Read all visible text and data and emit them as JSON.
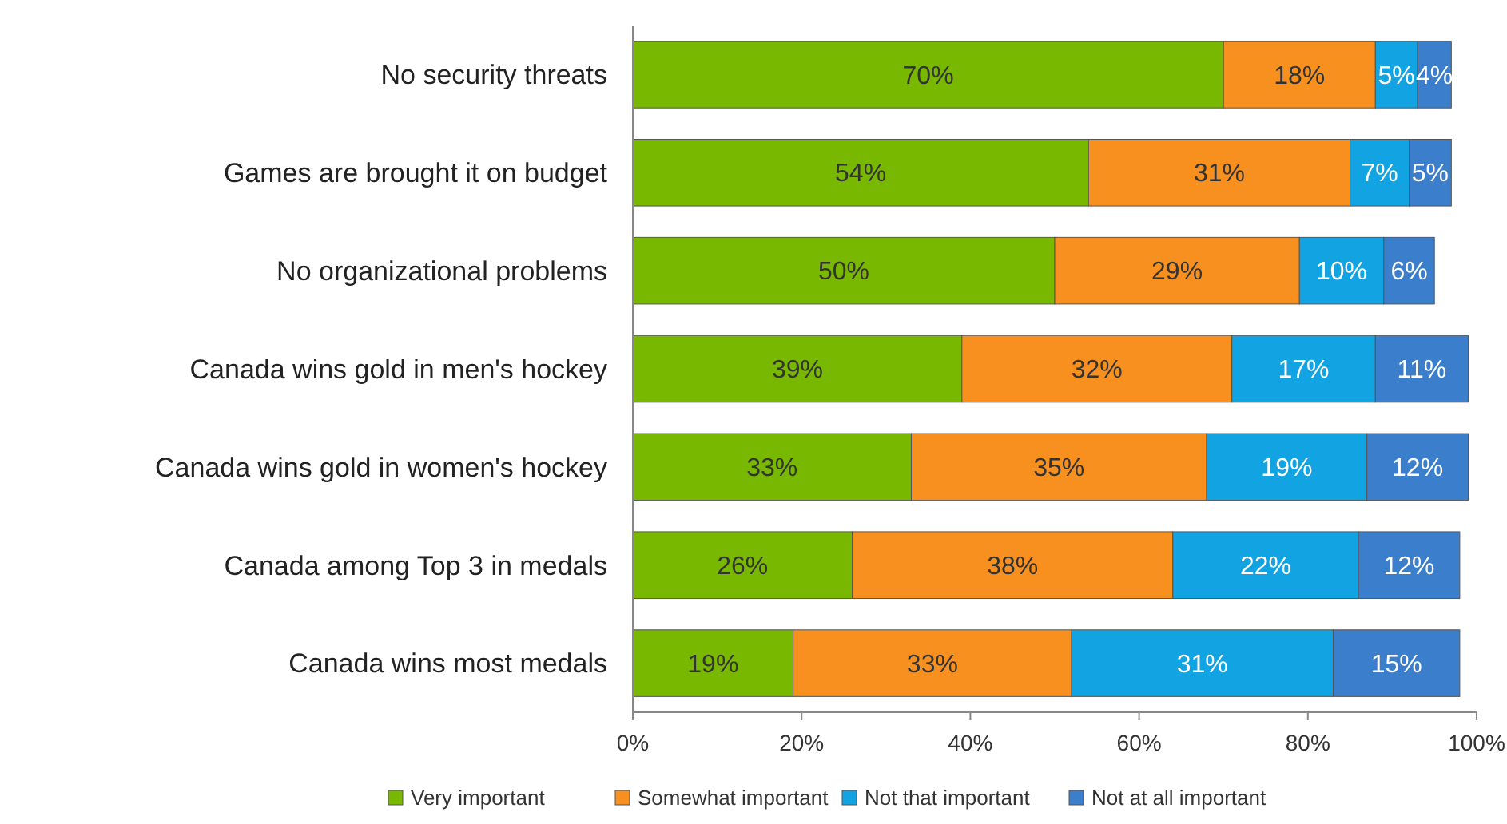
{
  "chart_data": {
    "type": "bar",
    "orientation": "horizontal",
    "stacked": true,
    "legend": "bottom",
    "grid": false,
    "categories": [
      "No security threats",
      "Games are brought it on budget",
      "No organizational problems",
      "Canada wins gold in men's hockey",
      "Canada wins gold in women's hockey",
      "Canada among Top 3 in medals",
      "Canada wins most medals"
    ],
    "series": [
      {
        "name": "Very important",
        "color": "#78b800",
        "values": [
          70,
          54,
          50,
          39,
          33,
          26,
          19
        ],
        "value_labels": [
          "70%",
          "54%",
          "50%",
          "39%",
          "33%",
          "26%",
          "19%"
        ]
      },
      {
        "name": "Somewhat important",
        "color": "#f7901e",
        "values": [
          18,
          31,
          29,
          32,
          35,
          38,
          33
        ],
        "value_labels": [
          "18%",
          "31%",
          "29%",
          "32%",
          "35%",
          "38%",
          "33%"
        ]
      },
      {
        "name": "Not that important",
        "color": "#12a3e3",
        "values": [
          5,
          7,
          10,
          17,
          19,
          22,
          31
        ],
        "value_labels": [
          "5%",
          "7%",
          "10%",
          "17%",
          "19%",
          "22%",
          "31%"
        ]
      },
      {
        "name": "Not at all important",
        "color": "#3b7fcc",
        "values": [
          4,
          5,
          6,
          11,
          12,
          12,
          15
        ],
        "value_labels": [
          "4%",
          "5%",
          "6%",
          "11%",
          "12%",
          "12%",
          "15%"
        ]
      }
    ],
    "xlim": [
      0,
      100
    ],
    "xticks": [
      {
        "value": 0,
        "label": "0%"
      },
      {
        "value": 20,
        "label": "20%"
      },
      {
        "value": 40,
        "label": "40%"
      },
      {
        "value": 60,
        "label": "60%"
      },
      {
        "value": 80,
        "label": "80%"
      },
      {
        "value": 100,
        "label": "100%"
      }
    ]
  }
}
